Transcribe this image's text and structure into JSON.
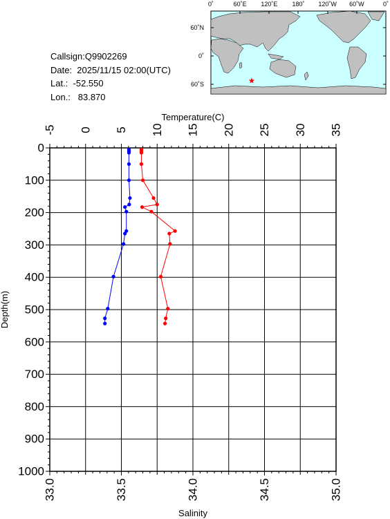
{
  "info": {
    "callsign": "Callsign:Q9902269",
    "date": "Date:  2025/11/15 02:00(UTC)",
    "lat": "Lat.:  -52.550",
    "lon": "Lon.:   83.870"
  },
  "map": {
    "top_labels": [
      "0˚",
      "60˚E",
      "120˚E",
      "180˚",
      "120˚W",
      "60˚W",
      "0˚"
    ],
    "lat_labels": [
      "60˚N",
      "0˚",
      "60˚S"
    ],
    "ocean_color": "#ccffff",
    "land_color": "#c0c0c0",
    "marker_color": "#ff0000",
    "marker": {
      "lon": 83.87,
      "lat": -52.55
    }
  },
  "chart_data": {
    "type": "line",
    "temperature_axis": {
      "label": "Temperature(C)",
      "range": [
        -5,
        35
      ],
      "ticks": [
        "-5",
        "0",
        "5",
        "10",
        "15",
        "20",
        "25",
        "30",
        "35"
      ]
    },
    "salinity_axis": {
      "label": "Salinity",
      "range": [
        33.0,
        35.0
      ],
      "ticks": [
        "33.0",
        "33.5",
        "34.0",
        "34.5",
        "35.0"
      ]
    },
    "depth_axis": {
      "label": "Depth(m)",
      "range": [
        0,
        1000
      ],
      "ticks": [
        "0",
        "100",
        "200",
        "300",
        "400",
        "500",
        "600",
        "700",
        "800",
        "900",
        "1000"
      ]
    },
    "series": [
      {
        "color": "#ff0000",
        "axis": "temperature",
        "points": [
          [
            7.8,
            5
          ],
          [
            7.8,
            10
          ],
          [
            7.8,
            15
          ],
          [
            7.8,
            50
          ],
          [
            8.0,
            100
          ],
          [
            9.5,
            155
          ],
          [
            10.0,
            175
          ],
          [
            7.9,
            183
          ],
          [
            9.2,
            197
          ],
          [
            12.5,
            257
          ],
          [
            11.7,
            265
          ],
          [
            11.8,
            297
          ],
          [
            10.5,
            398
          ],
          [
            11.5,
            497
          ],
          [
            11.2,
            527
          ],
          [
            11.1,
            543
          ]
        ]
      },
      {
        "color": "#0000ff",
        "axis": "salinity",
        "points": [
          [
            33.553,
            5
          ],
          [
            33.553,
            10
          ],
          [
            33.553,
            15
          ],
          [
            33.553,
            50
          ],
          [
            33.553,
            100
          ],
          [
            33.56,
            155
          ],
          [
            33.555,
            175
          ],
          [
            33.525,
            183
          ],
          [
            33.535,
            197
          ],
          [
            33.535,
            257
          ],
          [
            33.525,
            265
          ],
          [
            33.515,
            297
          ],
          [
            33.445,
            398
          ],
          [
            33.405,
            497
          ],
          [
            33.385,
            527
          ],
          [
            33.385,
            543
          ]
        ]
      }
    ]
  }
}
